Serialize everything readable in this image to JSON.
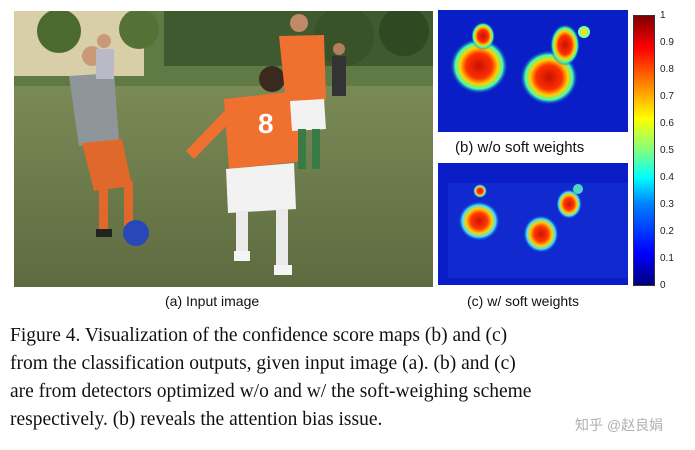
{
  "panels": {
    "a": {
      "label": "(a) Input image",
      "jersey_number": "8"
    },
    "b": {
      "label": "(b) w/o soft weights"
    },
    "c": {
      "label": "(c) w/ soft weights"
    }
  },
  "colorbar": {
    "ticks": [
      "1",
      "0.9",
      "0.8",
      "0.7",
      "0.6",
      "0.5",
      "0.4",
      "0.3",
      "0.2",
      "0.1",
      "0"
    ],
    "colormap": "jet",
    "range": [
      0,
      1
    ]
  },
  "caption": {
    "lines": [
      "Figure 4. Visualization of the confidence score maps (b) and (c)",
      "from the classification outputs, given input image (a). (b) and (c)",
      "are from detectors optimized w/o and w/ the soft-weighing scheme",
      "respectively. (b) reveals the attention bias issue."
    ]
  },
  "watermark": {
    "text": "知乎 @赵良娟"
  },
  "colors": {
    "heatmap_bg": "#0a1ec8",
    "jersey_orange": "#f07030",
    "grass": "#6f7d4e"
  }
}
